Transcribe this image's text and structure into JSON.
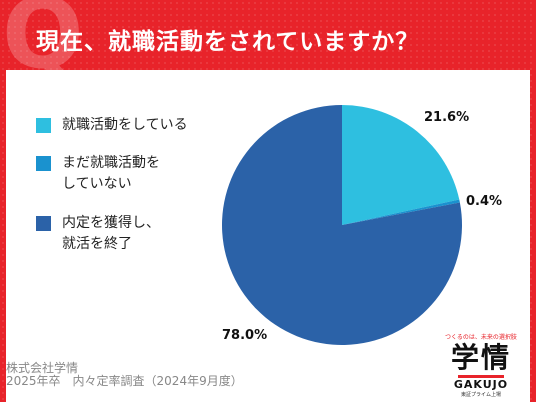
{
  "header": {
    "q_letter": "Q",
    "title": "現在、就職活動をされていますか？"
  },
  "chart_data": {
    "type": "pie",
    "title": "現在、就職活動をされていますか？",
    "slices": [
      {
        "label": "就職活動をしている",
        "value": 21.6,
        "value_label": "21.6%",
        "color": "#2ebfe0"
      },
      {
        "label": "まだ就職活動をしていない",
        "value": 0.4,
        "value_label": "0.4%",
        "color": "#1a92cf"
      },
      {
        "label": "内定を獲得し、就活を終了",
        "value": 78.0,
        "value_label": "78.0%",
        "color": "#2b62a8"
      }
    ],
    "legend_placement": "left"
  },
  "legend": {
    "items": [
      {
        "lines": [
          "就職活動をしている"
        ],
        "color": "#2ebfe0"
      },
      {
        "lines": [
          "まだ就職活動を",
          "していない"
        ],
        "color": "#1a92cf"
      },
      {
        "lines": [
          "内定を獲得し、",
          "就活を終了"
        ],
        "color": "#2b62a8"
      }
    ]
  },
  "footer": {
    "line1": "株式会社学情",
    "line2": "2025年卒　内々定率調査（2024年9月度）"
  },
  "logo": {
    "tagline": "つくるのは、未来の選択肢",
    "kanji": "学情",
    "english": "GAKUJO",
    "sub": "東証プライム上場"
  }
}
